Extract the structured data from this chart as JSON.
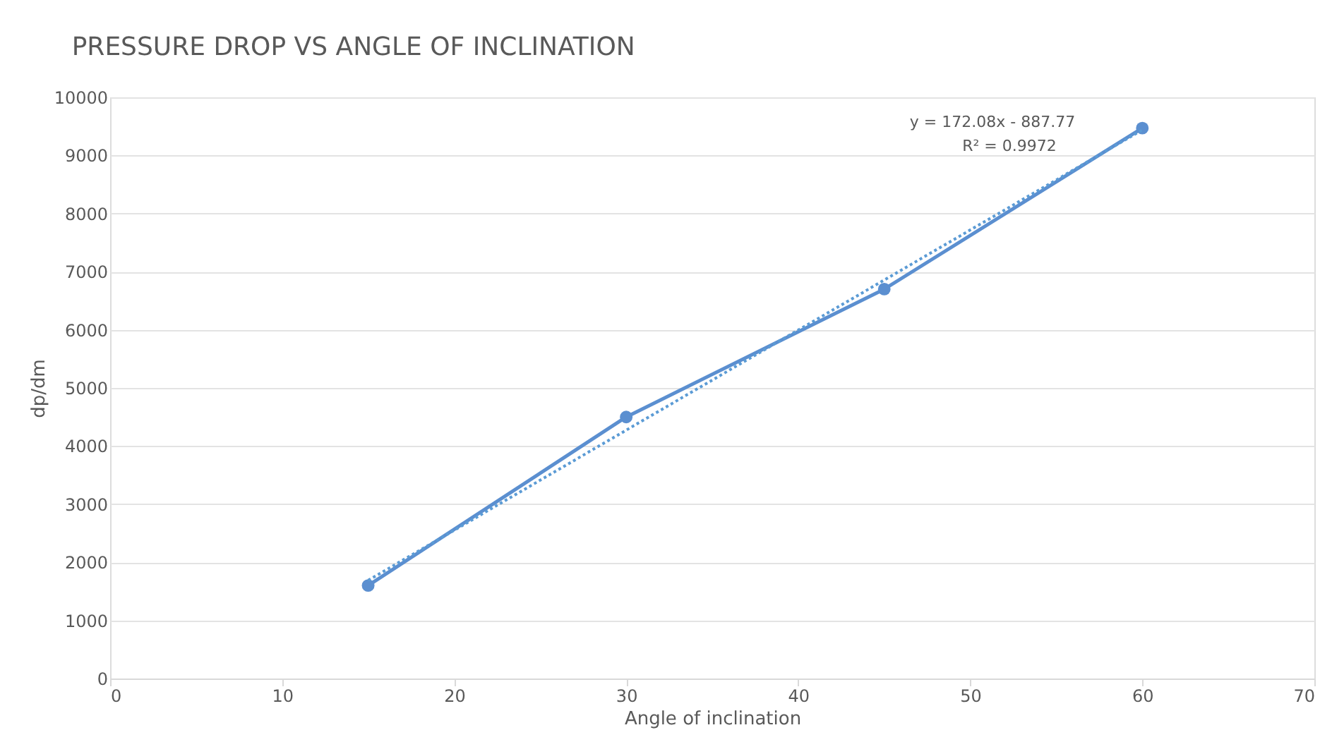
{
  "chart_data": {
    "type": "line",
    "title": "PRESSURE DROP VS ANGLE OF INCLINATION",
    "xlabel": "Angle of inclination",
    "ylabel": "dp/dm",
    "x": [
      15,
      30,
      45,
      60
    ],
    "series": [
      {
        "color": "#5b8fd0",
        "values": [
          1600,
          4500,
          6700,
          9470
        ],
        "marker": "circle",
        "line_style": "solid"
      },
      {
        "type": "line",
        "color": "#5b9bd5",
        "x": [
          15,
          60
        ],
        "values": [
          1690,
          9440
        ],
        "marker": "none",
        "line_style": "dotted"
      }
    ],
    "xlim": [
      0,
      70
    ],
    "xticks": [
      0,
      10,
      20,
      30,
      40,
      50,
      60,
      70
    ],
    "ylim": [
      0,
      10000
    ],
    "yticks": [
      0,
      1000,
      2000,
      3000,
      4000,
      5000,
      6000,
      7000,
      8000,
      9000,
      10000
    ],
    "grid": "y",
    "annotations": [
      "y = 172.08x - 887.77",
      "R² = 0.9972"
    ]
  }
}
